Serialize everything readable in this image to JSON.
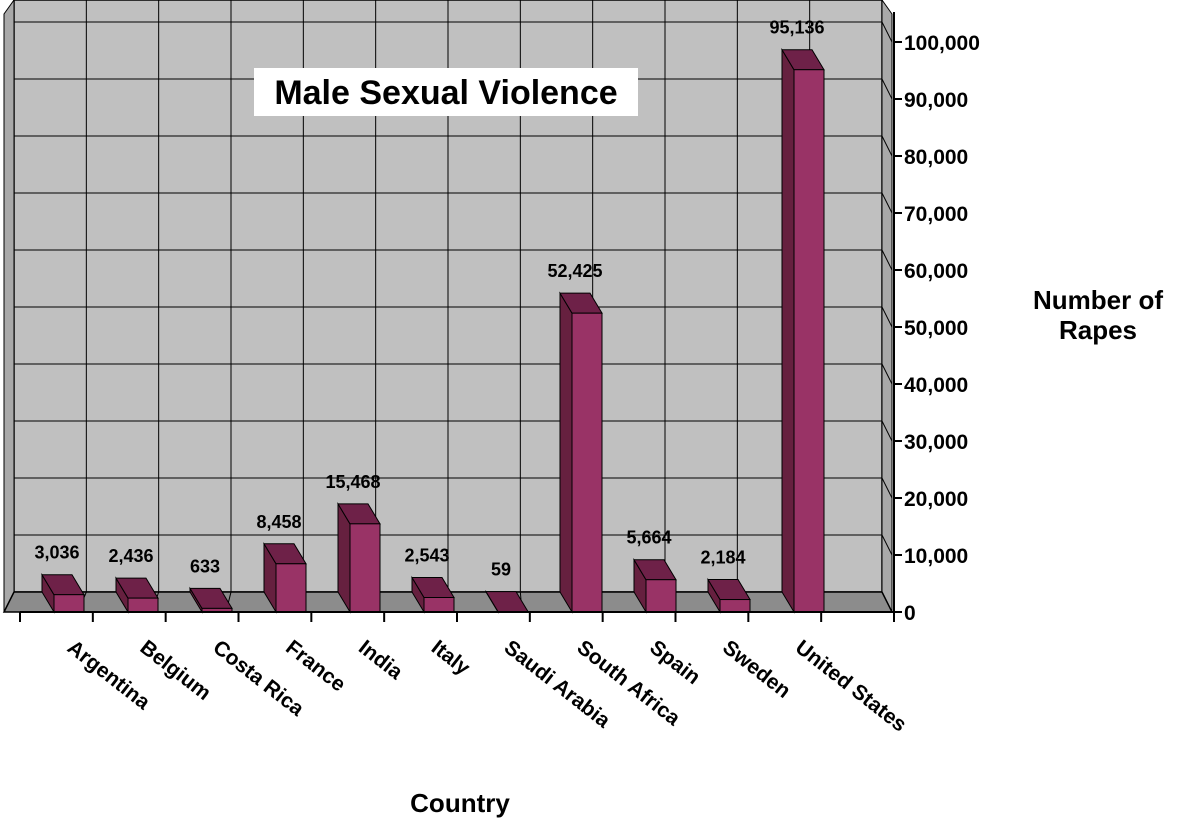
{
  "chart_data": {
    "type": "bar",
    "title": "Male Sexual Violence",
    "xlabel": "Country",
    "ylabel": "Number of Rapes",
    "categories": [
      "Argentina",
      "Belgium",
      "Costa Rica",
      "France",
      "India",
      "Italy",
      "Saudi Arabia",
      "South Africa",
      "Spain",
      "Sweden",
      "United States"
    ],
    "values": [
      3036,
      2436,
      633,
      8458,
      15468,
      2543,
      59,
      52425,
      5664,
      2184,
      95136
    ],
    "data_labels": [
      "3,036",
      "2,436",
      "633",
      "8,458",
      "15,468",
      "2,543",
      "59",
      "52,425",
      "5,664",
      "2,184",
      "95,136"
    ],
    "ylim": [
      0,
      100000
    ],
    "yticks": [
      0,
      10000,
      20000,
      30000,
      40000,
      50000,
      60000,
      70000,
      80000,
      90000,
      100000
    ],
    "ytick_labels": [
      "0",
      "10,000",
      "20,000",
      "30,000",
      "40,000",
      "50,000",
      "60,000",
      "70,000",
      "80,000",
      "90,000",
      "100,000"
    ],
    "grid": true,
    "y_axis_side": "right",
    "style": "3d-columns",
    "colors": {
      "bar_front": "#993366",
      "bar_top": "#6e2148",
      "bar_side": "#66203f",
      "wall": "#c0c0c0",
      "floor": "#8c8c8c",
      "grid": "#000000"
    }
  }
}
